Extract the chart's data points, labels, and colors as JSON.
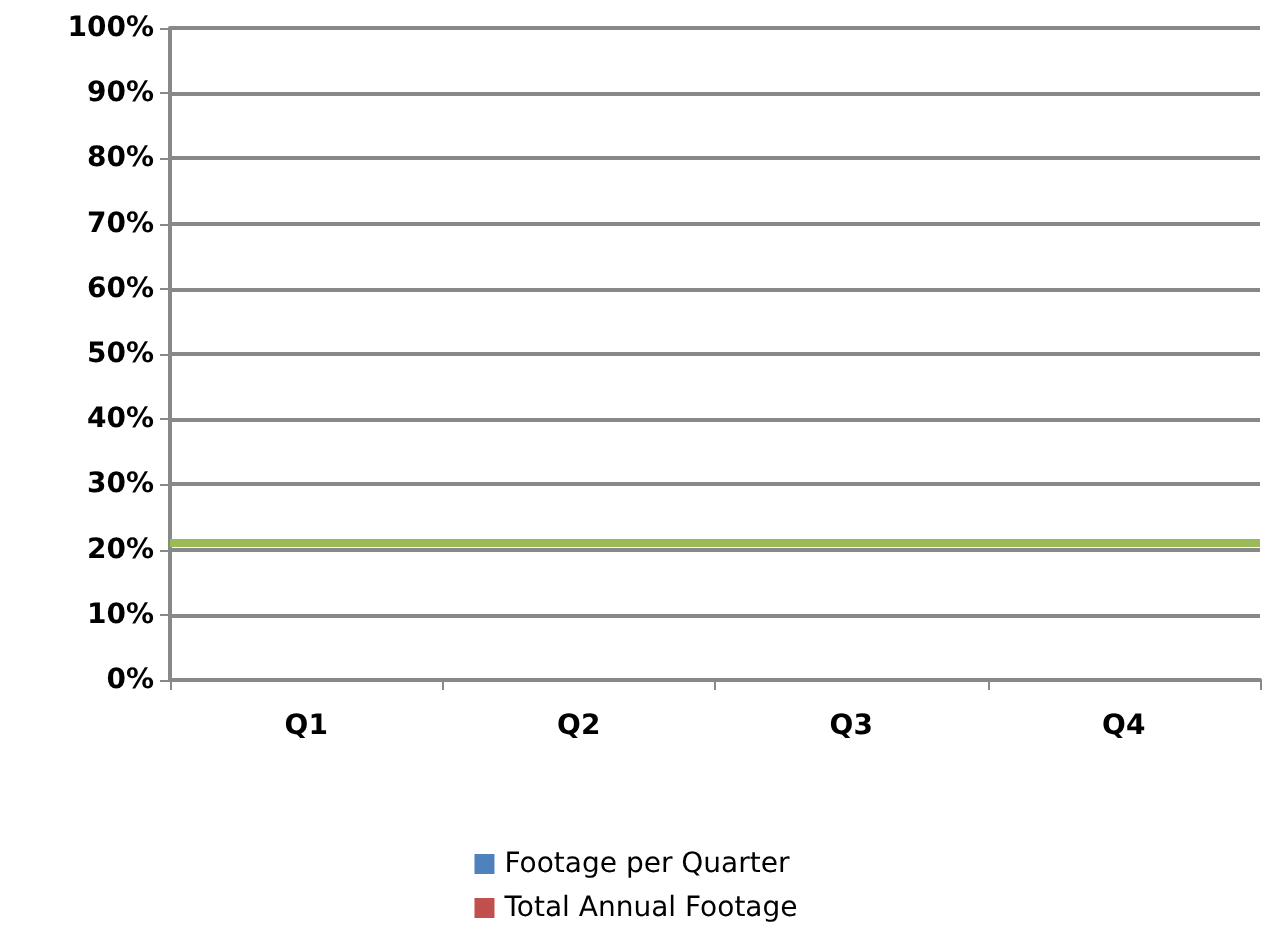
{
  "chart_data": {
    "type": "bar",
    "categories": [
      "Q1",
      "Q2",
      "Q3",
      "Q4"
    ],
    "series": [
      {
        "name": "Footage per Quarter",
        "color": "#4f81bd",
        "values": [
          null,
          null,
          null,
          null
        ]
      },
      {
        "name": "Total Annual Footage",
        "color": "#c0504d",
        "values": [
          null,
          null,
          null,
          null
        ]
      }
    ],
    "ylim": [
      0,
      100
    ],
    "yticks": [
      {
        "value": 0,
        "label": "0%"
      },
      {
        "value": 10,
        "label": "10%"
      },
      {
        "value": 20,
        "label": "20%"
      },
      {
        "value": 30,
        "label": "30%"
      },
      {
        "value": 40,
        "label": "40%"
      },
      {
        "value": 50,
        "label": "50%"
      },
      {
        "value": 60,
        "label": "60%"
      },
      {
        "value": 70,
        "label": "70%"
      },
      {
        "value": 80,
        "label": "80%"
      },
      {
        "value": 90,
        "label": "90%"
      },
      {
        "value": 100,
        "label": "100%"
      }
    ],
    "ref_lines": [
      {
        "axis": "y",
        "value": 21,
        "color": "#9bbb59"
      }
    ],
    "grid": "y",
    "legend": "bottom"
  }
}
